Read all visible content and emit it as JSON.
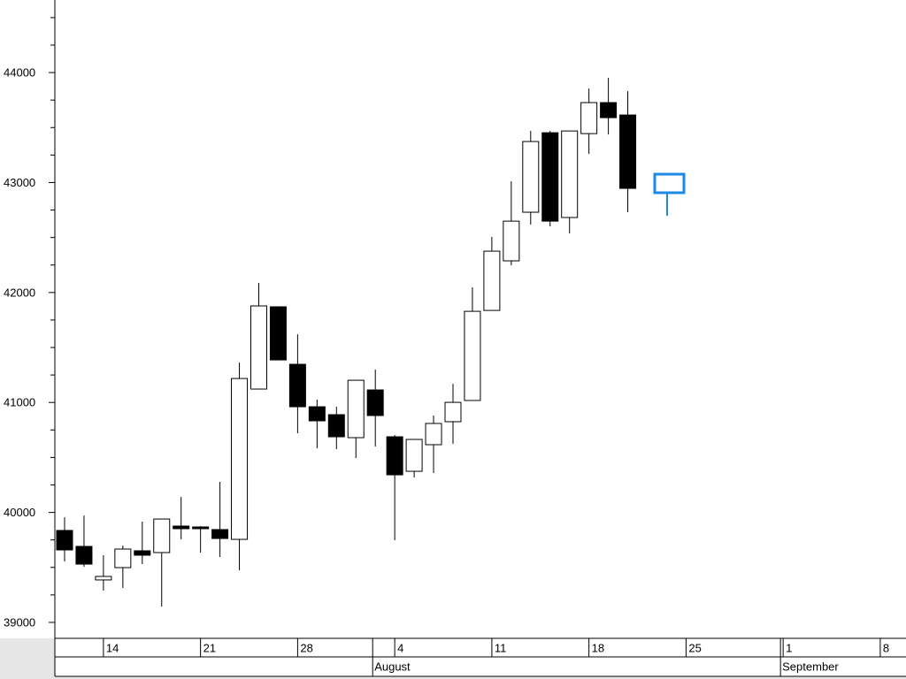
{
  "chart_data": {
    "type": "candlestick",
    "categories": [
      null,
      null,
      "14",
      null,
      null,
      null,
      null,
      "21",
      null,
      null,
      null,
      null,
      "28",
      null,
      null,
      null,
      null,
      "4",
      null,
      null,
      null,
      null,
      "11",
      null,
      null,
      null,
      null,
      "18",
      null,
      null,
      null,
      null,
      "25",
      null,
      null,
      null,
      null,
      "1",
      null,
      null,
      null,
      null,
      "8",
      null
    ],
    "month_categories": [
      null,
      null,
      null,
      null,
      null,
      null,
      null,
      null,
      null,
      null,
      null,
      null,
      null,
      null,
      null,
      null,
      "August",
      null,
      null,
      null,
      null,
      null,
      null,
      null,
      null,
      null,
      null,
      null,
      null,
      null,
      null,
      null,
      null,
      null,
      null,
      null,
      null,
      "September",
      null,
      null,
      null,
      null,
      null,
      null
    ],
    "open": [
      39836,
      39691,
      39386,
      39498,
      39651,
      39635,
      39876,
      39868,
      39844,
      39755,
      41122,
      41870,
      41347,
      40961,
      40889,
      40680,
      41114,
      40688,
      40374,
      40616,
      40825,
      41018,
      41837,
      42288,
      42730,
      43453,
      42682,
      43445,
      43727,
      43614,
      null,
      null,
      null,
      null,
      null,
      null,
      null,
      null,
      null,
      null,
      null,
      null,
      null,
      null
    ],
    "high": [
      39956,
      39972,
      39611,
      39699,
      39916,
      39940,
      40141,
      39875,
      40278,
      41363,
      42087,
      41870,
      41620,
      41026,
      40961,
      41202,
      41299,
      40704,
      40664,
      40881,
      41170,
      42047,
      42505,
      43011,
      43469,
      43469,
      43469,
      43855,
      43952,
      43831,
      null,
      null,
      null,
      null,
      null,
      null,
      null,
      null,
      null,
      null,
      null,
      null,
      null,
      null
    ],
    "low": [
      39554,
      39506,
      39289,
      39313,
      39530,
      39144,
      39755,
      39635,
      39595,
      39474,
      41122,
      41387,
      40720,
      40583,
      40575,
      40495,
      40600,
      39747,
      40318,
      40358,
      40624,
      41018,
      41837,
      42247,
      42617,
      42601,
      42537,
      43260,
      43437,
      42730,
      null,
      null,
      null,
      null,
      null,
      null,
      null,
      null,
      null,
      null,
      null,
      null,
      null,
      null
    ],
    "close": [
      39659,
      39530,
      39418,
      39667,
      39611,
      39940,
      39852,
      39852,
      39763,
      41218,
      41878,
      41387,
      40961,
      40833,
      40688,
      41202,
      40881,
      40342,
      40664,
      40809,
      41001,
      41829,
      42376,
      42649,
      43373,
      42649,
      43469,
      43727,
      43590,
      42947,
      null,
      null,
      null,
      null,
      null,
      null,
      null,
      null,
      null,
      null,
      null,
      null,
      null,
      null
    ],
    "up_color": "#ffffff",
    "down_color": "#000000",
    "edge_color": "#000000",
    "ylim": [
      38855,
      44660
    ],
    "yticks": [
      39000,
      40000,
      41000,
      42000,
      43000,
      44000
    ],
    "yminor_ticks": [
      39250,
      39500,
      39750,
      40250,
      40500,
      40750,
      41250,
      41500,
      41750,
      42250,
      42500,
      42750,
      43250,
      43500,
      43750,
      44250,
      44500
    ]
  }
}
